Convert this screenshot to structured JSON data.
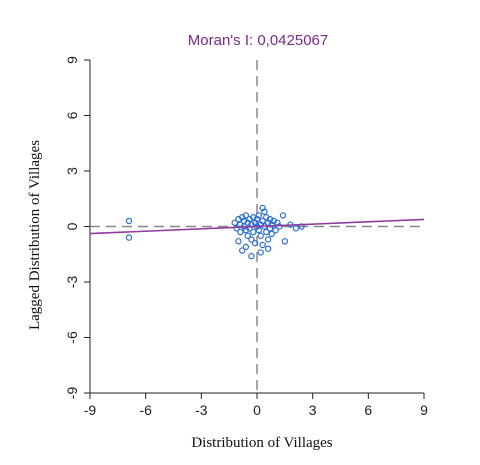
{
  "chart_data": {
    "type": "scatter",
    "title": "Moran's I: 0,0425067",
    "xlabel": "Distribution of Villages",
    "ylabel": "Lagged Distribution of Villages",
    "xlim": [
      -9,
      9
    ],
    "ylim": [
      -9,
      9
    ],
    "x_ticks": [
      -9,
      -6,
      -3,
      0,
      3,
      6,
      9
    ],
    "y_ticks": [
      -9,
      -6,
      -3,
      0,
      3,
      6,
      9
    ],
    "x_tick_labels": [
      "-9",
      "-6",
      "-3",
      "0",
      "3",
      "6",
      "9"
    ],
    "y_tick_labels": [
      "-9",
      "-6",
      "-3",
      "0",
      "3",
      "6",
      "9"
    ],
    "reference_lines": {
      "x": 0,
      "y": 0,
      "style": "dashed",
      "color": "#888888"
    },
    "regression_line": {
      "slope": 0.0425067,
      "intercept": 0,
      "color": "#8e3b9e"
    },
    "point_color": "#2a6fdb",
    "grid": false,
    "points": [
      {
        "x": -6.9,
        "y": 0.3
      },
      {
        "x": -6.9,
        "y": -0.6
      },
      {
        "x": -1.2,
        "y": 0.2
      },
      {
        "x": -1.1,
        "y": -0.1
      },
      {
        "x": -1.0,
        "y": 0.4
      },
      {
        "x": -1.0,
        "y": -0.8
      },
      {
        "x": -0.9,
        "y": 0.1
      },
      {
        "x": -0.9,
        "y": -0.3
      },
      {
        "x": -0.8,
        "y": 0.5
      },
      {
        "x": -0.8,
        "y": -1.3
      },
      {
        "x": -0.7,
        "y": 0.0
      },
      {
        "x": -0.7,
        "y": 0.3
      },
      {
        "x": -0.6,
        "y": -0.2
      },
      {
        "x": -0.6,
        "y": 0.6
      },
      {
        "x": -0.5,
        "y": 0.2
      },
      {
        "x": -0.5,
        "y": -0.5
      },
      {
        "x": -0.4,
        "y": 0.4
      },
      {
        "x": -0.4,
        "y": -0.1
      },
      {
        "x": -0.3,
        "y": 0.1
      },
      {
        "x": -0.3,
        "y": -0.7
      },
      {
        "x": -0.2,
        "y": 0.5
      },
      {
        "x": -0.2,
        "y": -0.3
      },
      {
        "x": -0.1,
        "y": 0.2
      },
      {
        "x": -0.1,
        "y": -0.9
      },
      {
        "x": 0.0,
        "y": 0.0
      },
      {
        "x": 0.0,
        "y": 0.4
      },
      {
        "x": 0.1,
        "y": -0.2
      },
      {
        "x": 0.1,
        "y": 0.6
      },
      {
        "x": 0.2,
        "y": 0.1
      },
      {
        "x": 0.2,
        "y": -0.5
      },
      {
        "x": 0.3,
        "y": 0.3
      },
      {
        "x": 0.3,
        "y": -1.0
      },
      {
        "x": 0.4,
        "y": 0.8
      },
      {
        "x": 0.4,
        "y": 0.0
      },
      {
        "x": 0.5,
        "y": -0.3
      },
      {
        "x": 0.5,
        "y": 0.5
      },
      {
        "x": 0.6,
        "y": 0.2
      },
      {
        "x": 0.6,
        "y": -0.7
      },
      {
        "x": 0.7,
        "y": 0.4
      },
      {
        "x": 0.7,
        "y": -0.1
      },
      {
        "x": 0.8,
        "y": 0.1
      },
      {
        "x": 0.8,
        "y": -0.4
      },
      {
        "x": 0.9,
        "y": 0.3
      },
      {
        "x": 1.0,
        "y": -0.2
      },
      {
        "x": 1.1,
        "y": 0.2
      },
      {
        "x": 1.2,
        "y": 0.0
      },
      {
        "x": 1.4,
        "y": 0.6
      },
      {
        "x": 1.5,
        "y": -0.8
      },
      {
        "x": 1.8,
        "y": 0.1
      },
      {
        "x": 2.1,
        "y": -0.1
      },
      {
        "x": 2.4,
        "y": 0.0
      },
      {
        "x": -0.3,
        "y": -1.6
      },
      {
        "x": 0.2,
        "y": -1.4
      },
      {
        "x": -0.6,
        "y": -1.1
      },
      {
        "x": 0.6,
        "y": -1.2
      },
      {
        "x": 0.3,
        "y": 1.0
      }
    ]
  }
}
